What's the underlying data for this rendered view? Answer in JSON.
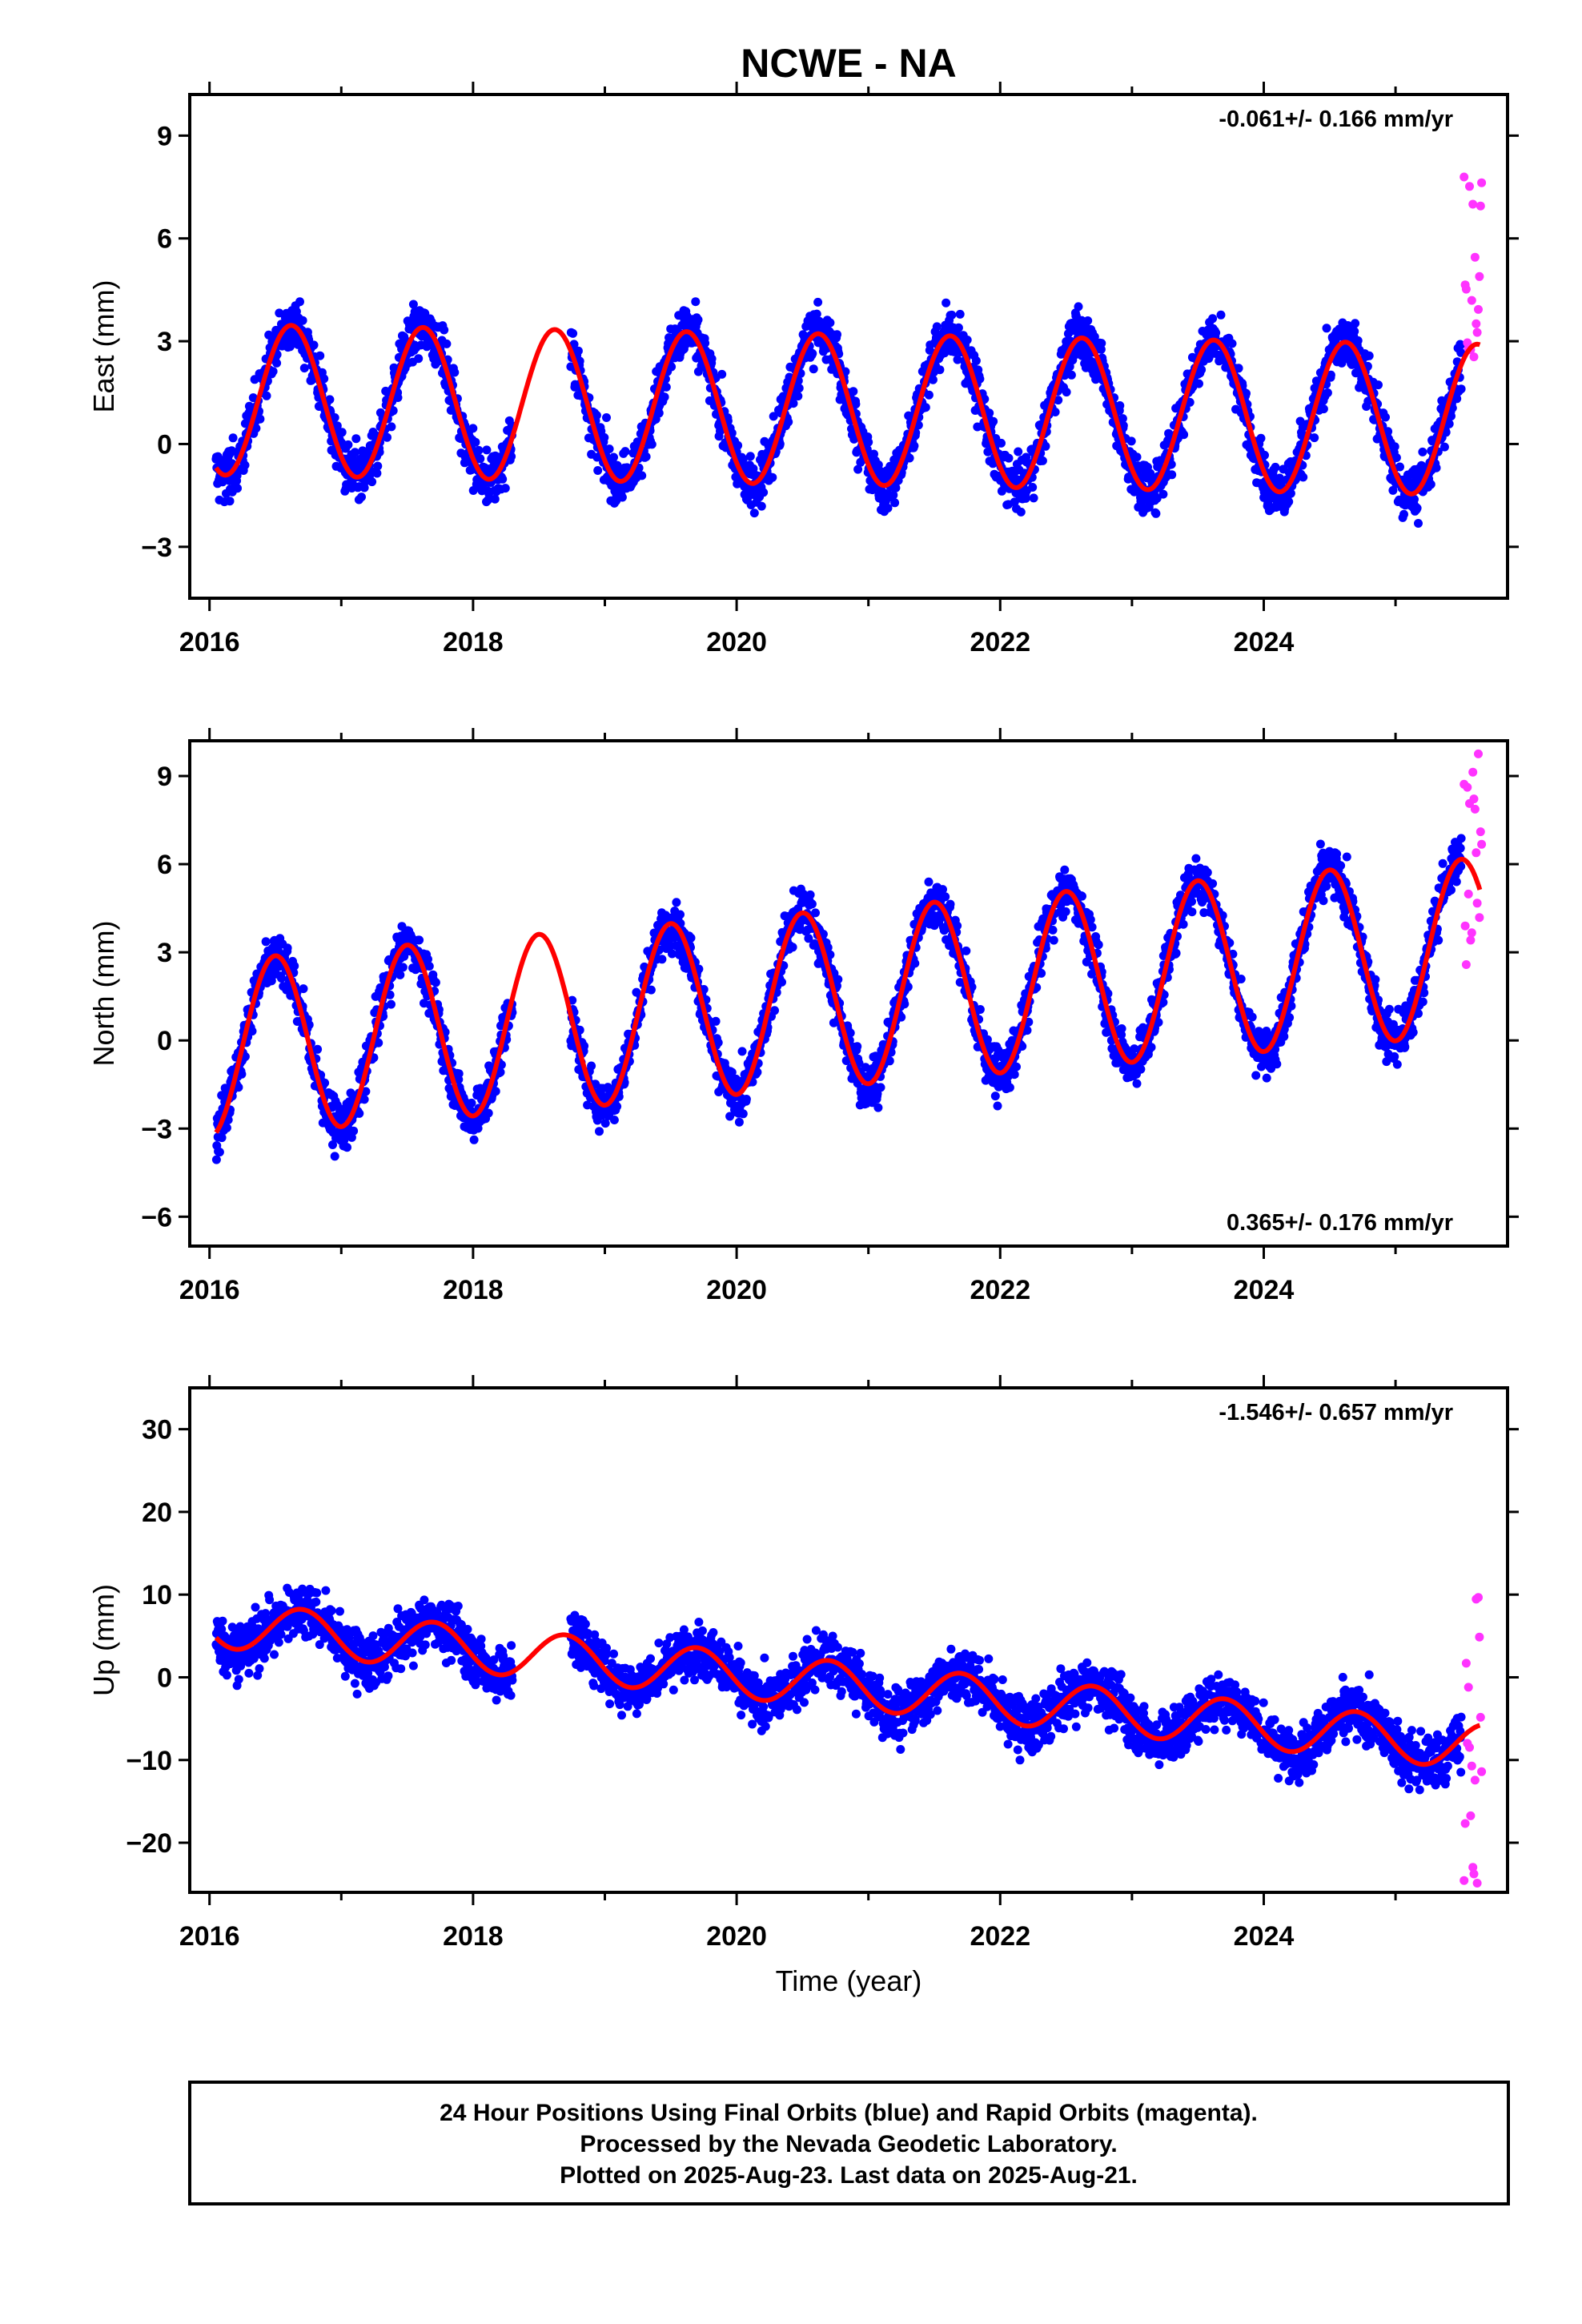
{
  "title": "NCWE - NA",
  "colors": {
    "final": "#0000ff",
    "rapid": "#ff33ff",
    "model": "#ff0000",
    "frame": "#000000"
  },
  "chart_data": [
    {
      "type": "scatter",
      "ylabel": "East (mm)",
      "xlabel": "",
      "xlim": [
        2015.85,
        2025.85
      ],
      "ylim": [
        -4.5,
        10.2
      ],
      "yticks": [
        -3,
        0,
        3,
        6,
        9
      ],
      "yticklabels": [
        "−3",
        "0",
        "3",
        "6",
        "9"
      ],
      "xticks": [
        2016,
        2018,
        2020,
        2022,
        2024
      ],
      "xticklabels": [
        "2016",
        "2018",
        "2020",
        "2022",
        "2024"
      ],
      "rate": "-0.061+/- 0.166 mm/yr",
      "rate_position": "top-right",
      "model": {
        "offset": 1.3,
        "trend": -0.061,
        "amp": 2.2,
        "peak": 0.62,
        "noise": 1.0,
        "rapid_tail": [
          2.5,
          8.0
        ]
      },
      "series": [
        {
          "name": "Final Orbits (blue)",
          "values": "daily 2016.05–2025.50"
        },
        {
          "name": "Rapid Orbits (magenta)",
          "values": "daily 2025.50–2025.64"
        }
      ]
    },
    {
      "type": "scatter",
      "ylabel": "North (mm)",
      "xlabel": "",
      "xlim": [
        2015.85,
        2025.85
      ],
      "ylim": [
        -7,
        10.2
      ],
      "yticks": [
        -6,
        -3,
        0,
        3,
        6,
        9
      ],
      "yticklabels": [
        "−6",
        "−3",
        "0",
        "3",
        "6",
        "9"
      ],
      "xticks": [
        2016,
        2018,
        2020,
        2022,
        2024
      ],
      "xticklabels": [
        "2016",
        "2018",
        "2020",
        "2022",
        "2024"
      ],
      "rate": "0.365+/- 0.176 mm/yr",
      "rate_position": "bottom-right",
      "model": {
        "offset": -0.3,
        "trend": 0.365,
        "amp": 3.0,
        "peak": 0.5,
        "noise": 1.1,
        "rapid_tail": [
          1.5,
          9.8
        ]
      },
      "series": [
        {
          "name": "Final Orbits (blue)",
          "values": "daily 2016.05–2025.50"
        },
        {
          "name": "Rapid Orbits (magenta)",
          "values": "daily 2025.50–2025.64"
        }
      ]
    },
    {
      "type": "scatter",
      "ylabel": "Up (mm)",
      "xlabel": "Time (year)",
      "xlim": [
        2015.85,
        2025.85
      ],
      "ylim": [
        -26,
        35
      ],
      "yticks": [
        -20,
        -10,
        0,
        10,
        20,
        30
      ],
      "yticklabels": [
        "−20",
        "−10",
        "0",
        "10",
        "20",
        "30"
      ],
      "xticks": [
        2016,
        2018,
        2020,
        2022,
        2024
      ],
      "xticklabels": [
        "2016",
        "2018",
        "2020",
        "2022",
        "2024"
      ],
      "rate": "-1.546+/- 0.657 mm/yr",
      "rate_position": "top-right",
      "model": {
        "offset": 6.5,
        "trend": -1.546,
        "amp": 2.8,
        "peak": 0.7,
        "noise": 4.2,
        "rapid_tail": [
          -25,
          11
        ]
      },
      "series": [
        {
          "name": "Final Orbits (blue)",
          "values": "daily 2016.05–2025.50"
        },
        {
          "name": "Rapid Orbits (magenta)",
          "values": "daily 2025.50–2025.64"
        }
      ]
    }
  ],
  "footer": {
    "line1": "24 Hour Positions Using Final Orbits (blue) and Rapid Orbits (magenta).",
    "line2": "Processed by the Nevada Geodetic Laboratory.",
    "line3": "Plotted on 2025-Aug-23. Last data on 2025-Aug-21."
  }
}
